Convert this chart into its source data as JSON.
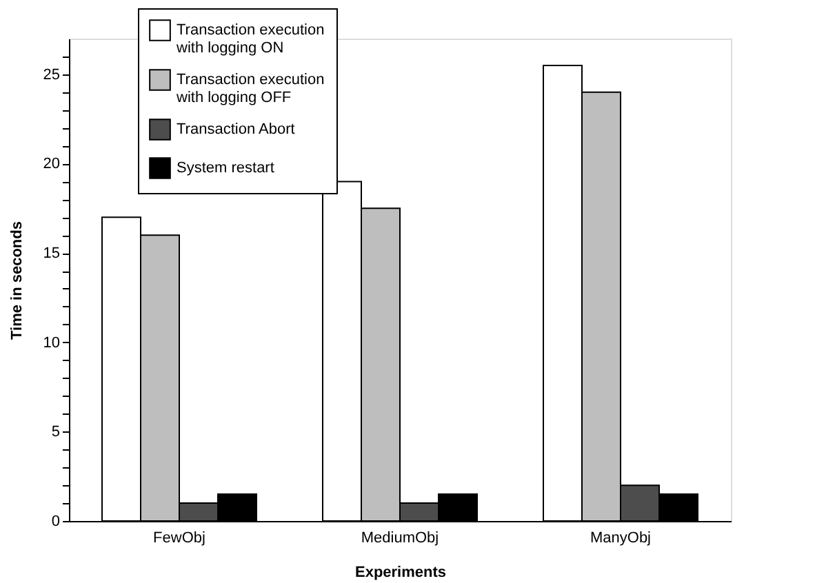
{
  "chart_data": {
    "type": "bar",
    "xlabel": "Experiments",
    "ylabel": "Time in seconds",
    "categories": [
      "FewObj",
      "MediumObj",
      "ManyObj"
    ],
    "series": [
      {
        "name": "Transaction execution with logging ON",
        "color": "#ffffff",
        "values": [
          17,
          19,
          25.5
        ]
      },
      {
        "name": "Transaction execution with logging OFF",
        "color": "#bebebe",
        "values": [
          16,
          17.5,
          24
        ]
      },
      {
        "name": "Transaction Abort",
        "color": "#4d4d4d",
        "values": [
          1,
          1,
          2
        ]
      },
      {
        "name": "System restart",
        "color": "#000000",
        "values": [
          1.5,
          1.5,
          1.5
        ]
      }
    ],
    "ylim": [
      0,
      27
    ],
    "yticks": [
      0,
      {
        "value": 1,
        "label": null
      },
      {
        "value": 2,
        "label": null
      },
      {
        "value": 3,
        "label": null
      },
      {
        "value": 4,
        "label": null
      },
      5,
      {
        "value": 6,
        "label": null
      },
      {
        "value": 7,
        "label": null
      },
      {
        "value": 8,
        "label": null
      },
      {
        "value": 9,
        "label": null
      },
      10,
      {
        "value": 11,
        "label": null
      },
      {
        "value": 12,
        "label": null
      },
      {
        "value": 13,
        "label": null
      },
      {
        "value": 14,
        "label": null
      },
      15,
      {
        "value": 16,
        "label": null
      },
      {
        "value": 17,
        "label": null
      },
      {
        "value": 18,
        "label": null
      },
      {
        "value": 19,
        "label": null
      },
      20,
      {
        "value": 21,
        "label": null
      },
      {
        "value": 22,
        "label": null
      },
      {
        "value": 23,
        "label": null
      },
      {
        "value": 24,
        "label": null
      },
      25,
      {
        "value": 26,
        "label": null
      }
    ],
    "grid": false,
    "legend": "top left"
  }
}
